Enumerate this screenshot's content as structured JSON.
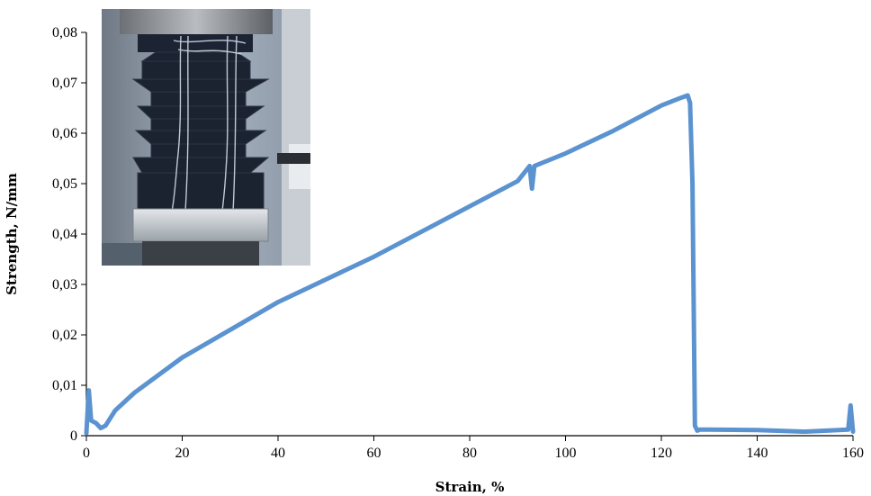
{
  "chart_data": {
    "type": "line",
    "xlabel": "Strain, %",
    "ylabel": "Strength, N/mm",
    "xlim": [
      0,
      160
    ],
    "ylim": [
      0,
      0.08
    ],
    "x_ticks": [
      "0",
      "20",
      "40",
      "60",
      "80",
      "100",
      "120",
      "140",
      "160"
    ],
    "y_ticks": [
      "0",
      "0,01",
      "0,02",
      "0,03",
      "0,04",
      "0,05",
      "0,06",
      "0,07",
      "0,08"
    ],
    "grid": false,
    "legend": "none",
    "series": [
      {
        "color": "#5b93d0",
        "x": [
          0,
          0.5,
          1,
          2,
          3,
          4,
          6,
          10,
          20,
          30,
          40,
          50,
          60,
          70,
          80,
          90,
          92.5,
          93,
          93.5,
          100,
          110,
          120,
          124,
          125.5,
          126,
          126.5,
          127,
          127.5,
          128,
          130,
          140,
          150,
          159,
          159.5,
          160
        ],
        "y": [
          0.0005,
          0.009,
          0.003,
          0.0025,
          0.0015,
          0.002,
          0.005,
          0.0085,
          0.0155,
          0.021,
          0.0265,
          0.031,
          0.0355,
          0.0405,
          0.0455,
          0.0505,
          0.0535,
          0.049,
          0.0535,
          0.056,
          0.0605,
          0.0655,
          0.067,
          0.0675,
          0.066,
          0.05,
          0.002,
          0.001,
          0.0012,
          0.0012,
          0.0011,
          0.0008,
          0.0012,
          0.006,
          0.0008
        ]
      }
    ]
  },
  "inset": {
    "subject": "tensile test photo of transparent film in grips with dark bellows"
  }
}
